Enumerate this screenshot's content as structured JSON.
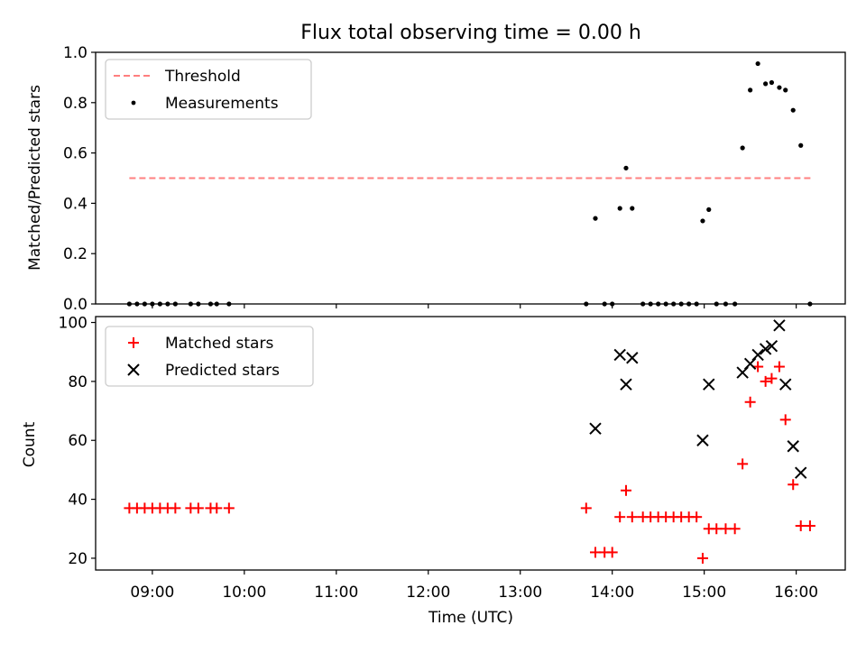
{
  "chart_data": [
    {
      "type": "scatter",
      "title": "Flux total observing time = 0.00 h",
      "ylabel": "Matched/Predicted stars",
      "xlabel": "",
      "x_unit": "hours UTC",
      "xlim": [
        "08:23",
        "16:32"
      ],
      "ylim": [
        0,
        1.0
      ],
      "y_ticks": [
        0.0,
        0.2,
        0.4,
        0.6,
        0.8,
        1.0
      ],
      "y_tick_labels": [
        "0.0",
        "0.2",
        "0.4",
        "0.6",
        "0.8",
        "1.0"
      ],
      "grid": false,
      "legend_location": "upper left",
      "legend": [
        {
          "label": "Threshold",
          "style": "dashed-line",
          "color": "#ff7f7f"
        },
        {
          "label": "Measurements",
          "style": "dot",
          "color": "#000000"
        }
      ],
      "series": [
        {
          "name": "Threshold",
          "kind": "line",
          "x": [
            "08:45",
            "16:10"
          ],
          "y": [
            0.5,
            0.5
          ]
        },
        {
          "name": "Measurements",
          "kind": "scatter",
          "points": [
            [
              "08:45",
              0.0
            ],
            [
              "08:50",
              0.0
            ],
            [
              "08:55",
              0.0
            ],
            [
              "09:00",
              0.0
            ],
            [
              "09:05",
              0.0
            ],
            [
              "09:10",
              0.0
            ],
            [
              "09:15",
              0.0
            ],
            [
              "09:25",
              0.0
            ],
            [
              "09:30",
              0.0
            ],
            [
              "09:38",
              0.0
            ],
            [
              "09:42",
              0.0
            ],
            [
              "09:50",
              0.0
            ],
            [
              "13:43",
              0.0
            ],
            [
              "13:49",
              0.34
            ],
            [
              "13:55",
              0.0
            ],
            [
              "14:00",
              0.0
            ],
            [
              "14:05",
              0.38
            ],
            [
              "14:09",
              0.54
            ],
            [
              "14:13",
              0.38
            ],
            [
              "14:20",
              0.0
            ],
            [
              "14:25",
              0.0
            ],
            [
              "14:30",
              0.0
            ],
            [
              "14:35",
              0.0
            ],
            [
              "14:40",
              0.0
            ],
            [
              "14:45",
              0.0
            ],
            [
              "14:50",
              0.0
            ],
            [
              "14:55",
              0.0
            ],
            [
              "14:59",
              0.33
            ],
            [
              "15:03",
              0.375
            ],
            [
              "15:08",
              0.0
            ],
            [
              "15:14",
              0.0
            ],
            [
              "15:20",
              0.0
            ],
            [
              "15:25",
              0.62
            ],
            [
              "15:30",
              0.85
            ],
            [
              "15:35",
              0.955
            ],
            [
              "15:40",
              0.875
            ],
            [
              "15:44",
              0.88
            ],
            [
              "15:49",
              0.86
            ],
            [
              "15:53",
              0.85
            ],
            [
              "15:58",
              0.77
            ],
            [
              "16:03",
              0.63
            ],
            [
              "16:09",
              0.0
            ]
          ]
        }
      ]
    },
    {
      "type": "scatter",
      "title": "",
      "ylabel": "Count",
      "xlabel": "Time (UTC)",
      "x_unit": "hours UTC",
      "xlim": [
        "08:23",
        "16:32"
      ],
      "ylim": [
        16,
        102
      ],
      "x_ticks": [
        "09:00",
        "10:00",
        "11:00",
        "12:00",
        "13:00",
        "14:00",
        "15:00",
        "16:00"
      ],
      "x_tick_labels": [
        "09:00",
        "10:00",
        "11:00",
        "12:00",
        "13:00",
        "14:00",
        "15:00",
        "16:00"
      ],
      "y_ticks": [
        20,
        40,
        60,
        80,
        100
      ],
      "y_tick_labels": [
        "20",
        "40",
        "60",
        "80",
        "100"
      ],
      "grid": false,
      "legend_location": "upper left",
      "legend": [
        {
          "label": "Matched stars",
          "marker": "+",
          "color": "#ff0000"
        },
        {
          "label": "Predicted stars",
          "marker": "x",
          "color": "#000000"
        }
      ],
      "series": [
        {
          "name": "Matched stars",
          "marker": "+",
          "color": "#ff0000",
          "points": [
            [
              "08:45",
              37
            ],
            [
              "08:50",
              37
            ],
            [
              "08:55",
              37
            ],
            [
              "09:00",
              37
            ],
            [
              "09:05",
              37
            ],
            [
              "09:10",
              37
            ],
            [
              "09:15",
              37
            ],
            [
              "09:25",
              37
            ],
            [
              "09:30",
              37
            ],
            [
              "09:38",
              37
            ],
            [
              "09:42",
              37
            ],
            [
              "09:50",
              37
            ],
            [
              "13:43",
              37
            ],
            [
              "13:49",
              22
            ],
            [
              "13:55",
              22
            ],
            [
              "14:00",
              22
            ],
            [
              "14:05",
              34
            ],
            [
              "14:09",
              43
            ],
            [
              "14:13",
              34
            ],
            [
              "14:20",
              34
            ],
            [
              "14:25",
              34
            ],
            [
              "14:30",
              34
            ],
            [
              "14:35",
              34
            ],
            [
              "14:40",
              34
            ],
            [
              "14:45",
              34
            ],
            [
              "14:50",
              34
            ],
            [
              "14:55",
              34
            ],
            [
              "14:59",
              20
            ],
            [
              "15:03",
              30
            ],
            [
              "15:08",
              30
            ],
            [
              "15:14",
              30
            ],
            [
              "15:20",
              30
            ],
            [
              "15:25",
              52
            ],
            [
              "15:30",
              73
            ],
            [
              "15:35",
              85
            ],
            [
              "15:40",
              80
            ],
            [
              "15:44",
              81
            ],
            [
              "15:49",
              85
            ],
            [
              "15:53",
              67
            ],
            [
              "15:58",
              45
            ],
            [
              "16:03",
              31
            ],
            [
              "16:09",
              31
            ]
          ]
        },
        {
          "name": "Predicted stars",
          "marker": "x",
          "color": "#000000",
          "points": [
            [
              "13:49",
              64
            ],
            [
              "14:05",
              89
            ],
            [
              "14:09",
              79
            ],
            [
              "14:13",
              88
            ],
            [
              "14:59",
              60
            ],
            [
              "15:03",
              79
            ],
            [
              "15:25",
              83
            ],
            [
              "15:30",
              86
            ],
            [
              "15:35",
              89
            ],
            [
              "15:40",
              91
            ],
            [
              "15:44",
              92
            ],
            [
              "15:49",
              99
            ],
            [
              "15:53",
              79
            ],
            [
              "15:58",
              58
            ],
            [
              "16:03",
              49
            ]
          ]
        }
      ]
    }
  ]
}
